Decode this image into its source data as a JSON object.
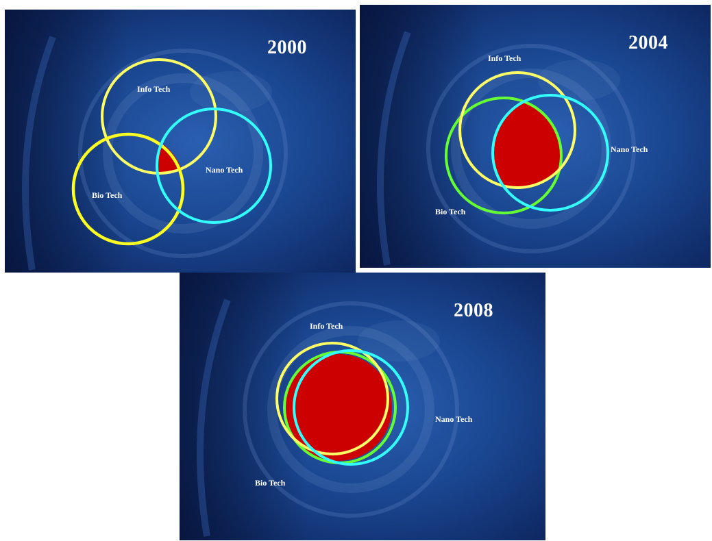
{
  "panels": [
    {
      "year": "2000",
      "info_label": "Info Tech",
      "bio_label": "Bio Tech",
      "nano_label": "Nano Tech"
    },
    {
      "year": "2004",
      "info_label": "Info Tech",
      "bio_label": "Bio Tech",
      "nano_label": "Nano Tech"
    },
    {
      "year": "2008",
      "info_label": "Info Tech",
      "bio_label": "Bio Tech",
      "nano_label": "Nano Tech"
    }
  ],
  "colors": {
    "info_tech": "#ffff66",
    "bio_tech": "#ffff33",
    "bio_tech_later": "#66ff33",
    "nano_tech": "#33ffff",
    "overlap": "#cc0000",
    "background_dark": "#0a1a45",
    "background_mid": "#1b4a9a"
  }
}
